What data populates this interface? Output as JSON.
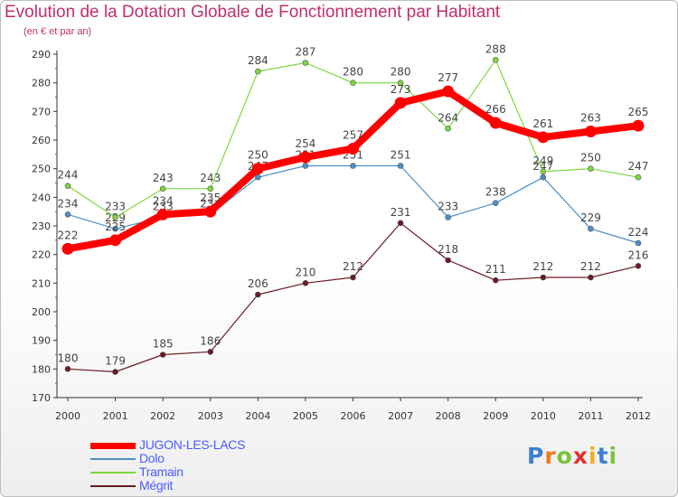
{
  "header": {
    "title": "Evolution de la Dotation Globale de Fonctionnement par Habitant",
    "subtitle": "(en € et par an)"
  },
  "chart_data": {
    "type": "line",
    "title": "Evolution de la Dotation Globale de Fonctionnement par Habitant",
    "subtitle": "(en € et par an)",
    "xlabel": "",
    "ylabel": "",
    "x": [
      "2000",
      "2001",
      "2002",
      "2003",
      "2004",
      "2005",
      "2006",
      "2007",
      "2008",
      "2009",
      "2010",
      "2011",
      "2012"
    ],
    "ylim": [
      170,
      290
    ],
    "yticks": [
      170,
      180,
      190,
      200,
      210,
      220,
      230,
      240,
      250,
      260,
      270,
      280,
      290
    ],
    "grid": false,
    "legend_position": "bottom-left",
    "series": [
      {
        "name": "Mégrit",
        "color": "#6b1a24",
        "values": [
          180,
          179,
          185,
          186,
          206,
          210,
          212,
          231,
          218,
          211,
          212,
          212,
          216
        ]
      },
      {
        "name": "Dolo",
        "color": "#4a8fc8",
        "values": [
          234,
          229,
          233,
          234,
          247,
          251,
          251,
          251,
          233,
          238,
          247,
          229,
          224
        ]
      },
      {
        "name": "Tramain",
        "color": "#7fd640",
        "values": [
          244,
          233,
          243,
          243,
          284,
          287,
          280,
          280,
          264,
          288,
          249,
          250,
          247
        ]
      },
      {
        "name": "JUGON-LES-LACS",
        "color": "#ff0000",
        "values": [
          222,
          225,
          234,
          235,
          250,
          254,
          257,
          273,
          277,
          266,
          261,
          263,
          265
        ]
      }
    ],
    "legend": [
      "JUGON-LES-LACS",
      "Dolo",
      "Tramain",
      "Mégrit"
    ]
  },
  "logo": {
    "letters": [
      "P",
      "r",
      "o",
      "x",
      "i",
      "t",
      "i"
    ],
    "colors": [
      "#3a7fd0",
      "#f07a1a",
      "#7cc23a",
      "#e23030",
      "#f0b020",
      "#3a7fd0",
      "#7cc23a"
    ]
  }
}
